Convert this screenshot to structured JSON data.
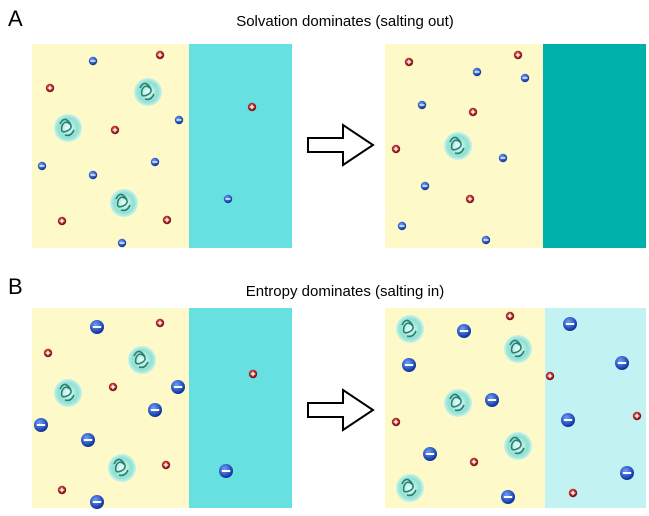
{
  "panels": [
    {
      "letter": "A",
      "title": "Solvation dominates (salting out)"
    },
    {
      "letter": "B",
      "title": "Entropy dominates (salting in)"
    }
  ]
}
